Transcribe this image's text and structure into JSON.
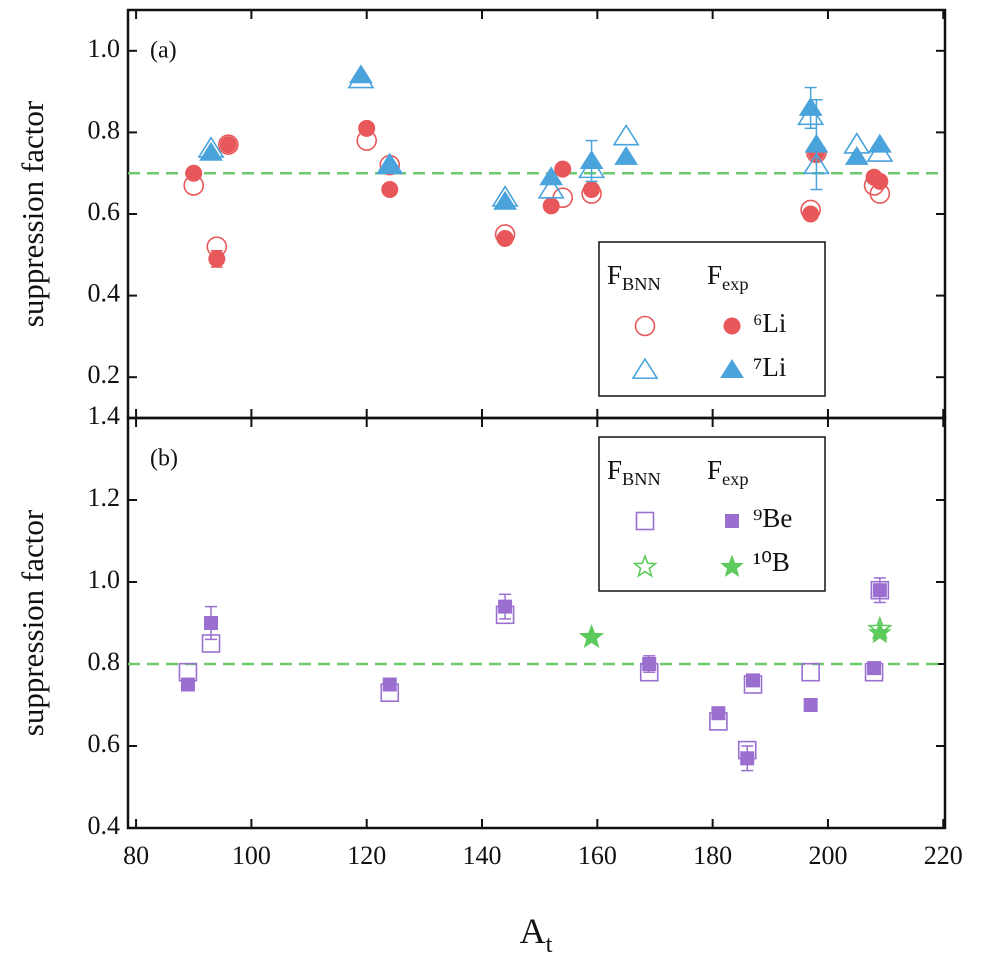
{
  "chart_data": [
    {
      "type": "scatter",
      "panel_label": "(a)",
      "ylabel": "suppression factor",
      "xlim": [
        78.6,
        220.3
      ],
      "ylim": [
        0.1,
        1.1
      ],
      "yticks": [
        0.2,
        0.4,
        0.6,
        0.8,
        {
          "value": 1,
          "label": "1.0"
        }
      ],
      "reference_line": 0.7,
      "reference_color": "#6cc96c",
      "legend": "lower right",
      "legend_headers": [
        {
          "text": "F",
          "sub": "BNN"
        },
        {
          "text": "F",
          "sub": "exp"
        }
      ],
      "groups": [
        {
          "name": "⁶Li",
          "color": "#e8585a",
          "marker": "circle",
          "bnn": {
            "x": [
              90,
              94,
              96,
              120,
              124,
              144,
              154,
              159,
              197,
              198,
              208,
              209
            ],
            "y": [
              0.67,
              0.52,
              0.77,
              0.78,
              0.72,
              0.55,
              0.64,
              0.65,
              0.61,
              0.75,
              0.67,
              0.65
            ]
          },
          "exp": {
            "x": [
              90,
              94,
              96,
              120,
              124,
              144,
              152,
              154,
              159,
              197,
              198,
              208,
              209
            ],
            "y": [
              0.7,
              0.49,
              0.77,
              0.81,
              0.66,
              0.54,
              0.62,
              0.71,
              0.66,
              0.6,
              0.75,
              0.69,
              0.68
            ],
            "err": [
              null,
              0.02,
              null,
              null,
              null,
              null,
              null,
              null,
              null,
              null,
              0.02,
              null,
              null
            ]
          }
        },
        {
          "name": "⁷Li",
          "color": "#4ba3dc",
          "marker": "triangle",
          "bnn": {
            "x": [
              93,
              119,
              124,
              144,
              152,
              159,
              165,
              197,
              198,
              205,
              209
            ],
            "y": [
              0.76,
              0.93,
              0.72,
              0.64,
              0.66,
              0.71,
              0.79,
              0.84,
              0.72,
              0.77,
              0.75
            ]
          },
          "exp": {
            "x": [
              93,
              119,
              124,
              144,
              152,
              159,
              165,
              197,
              198,
              205,
              209
            ],
            "y": [
              0.75,
              0.94,
              0.72,
              0.63,
              0.69,
              0.73,
              0.74,
              0.86,
              0.77,
              0.74,
              0.77
            ],
            "err": [
              null,
              null,
              null,
              null,
              null,
              0.05,
              null,
              0.05,
              0.11,
              null,
              null
            ]
          }
        }
      ]
    },
    {
      "type": "scatter",
      "panel_label": "(b)",
      "ylabel": "suppression factor",
      "xlim": [
        78.6,
        220.3
      ],
      "ylim": [
        0.4,
        1.4
      ],
      "xticks": [
        80,
        100,
        120,
        140,
        160,
        180,
        200,
        220
      ],
      "yticks": [
        0.4,
        0.6,
        0.8,
        {
          "value": 1,
          "label": "1.0"
        },
        1.2,
        1.4
      ],
      "xlabel": {
        "text": "A",
        "sub": "t"
      },
      "reference_line": 0.8,
      "reference_color": "#6cc96c",
      "legend": "upper right",
      "legend_headers": [
        {
          "text": "F",
          "sub": "BNN"
        },
        {
          "text": "F",
          "sub": "exp"
        }
      ],
      "groups": [
        {
          "name": "⁹Be",
          "color": "#9a6fd0",
          "marker": "square",
          "bnn": {
            "x": [
              89,
              93,
              124,
              144,
              169,
              181,
              186,
              187,
              197,
              208,
              209
            ],
            "y": [
              0.78,
              0.85,
              0.73,
              0.92,
              0.78,
              0.66,
              0.59,
              0.75,
              0.78,
              0.78,
              0.98
            ]
          },
          "exp": {
            "x": [
              89,
              93,
              124,
              144,
              169,
              181,
              186,
              187,
              197,
              208,
              209
            ],
            "y": [
              0.75,
              0.9,
              0.75,
              0.94,
              0.8,
              0.68,
              0.57,
              0.76,
              0.7,
              0.79,
              0.98
            ],
            "err": [
              null,
              0.04,
              null,
              0.03,
              0.02,
              null,
              0.03,
              null,
              null,
              null,
              0.03
            ]
          }
        },
        {
          "name": "¹⁰B",
          "color": "#5ccb5c",
          "marker": "star",
          "bnn": {
            "x": [
              159,
              209
            ],
            "y": [
              0.87,
              0.89
            ]
          },
          "exp": {
            "x": [
              159,
              209
            ],
            "y": [
              0.87,
              0.88
            ],
            "err": [
              null,
              null
            ]
          }
        }
      ]
    }
  ]
}
